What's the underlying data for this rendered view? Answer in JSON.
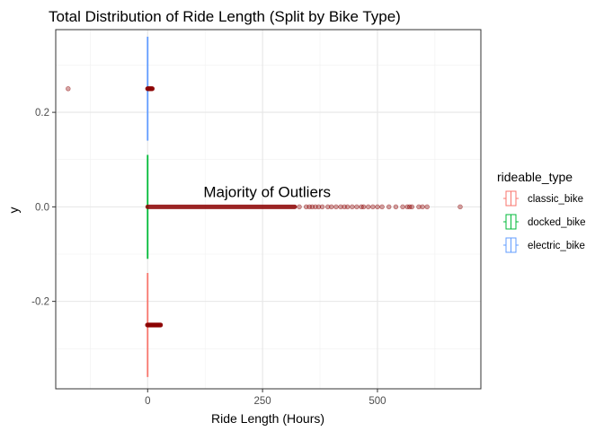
{
  "chart_data": {
    "type": "boxplot",
    "title": "Total Distribution of Ride Length (Split by Bike Type)",
    "xlabel": "Ride Length (Hours)",
    "ylabel": "y",
    "xlim": [
      -200,
      725
    ],
    "ylim": [
      -0.385,
      0.375
    ],
    "x_ticks": [
      0,
      250,
      500
    ],
    "y_ticks": [
      -0.2,
      0.0,
      0.2
    ],
    "x_tick_labels": [
      "0",
      "250",
      "500"
    ],
    "y_tick_labels": [
      "-0.2",
      "0.0",
      "0.2"
    ],
    "grid": true,
    "annotation": {
      "text": "Majority of Outliers",
      "x": 260,
      "y": 0.03
    },
    "legend": {
      "title": "rideable_type",
      "position": "right"
    },
    "series": [
      {
        "name": "classic_bike",
        "color": "#F8766D",
        "y_center": -0.25,
        "whisker_low": -0.36,
        "whisker_high": -0.14,
        "x": 0,
        "outlier_range": [
          0,
          28
        ],
        "outliers": [
          -0.5,
          2,
          4,
          6,
          8,
          10,
          12,
          14,
          16,
          18,
          20,
          22,
          24,
          26,
          28
        ]
      },
      {
        "name": "docked_bike",
        "color": "#00BA38",
        "y_center": 0.0,
        "whisker_low": -0.11,
        "whisker_high": 0.11,
        "x": 0,
        "outlier_range": [
          0,
          320
        ],
        "outliers": [
          330,
          345,
          352,
          358,
          365,
          372,
          380,
          392,
          400,
          410,
          420,
          428,
          435,
          445,
          455,
          465,
          470,
          480,
          490,
          500,
          510,
          525,
          540,
          555,
          565,
          570,
          575,
          590,
          598,
          608,
          680
        ]
      },
      {
        "name": "electric_bike",
        "color": "#619CFF",
        "y_center": 0.25,
        "whisker_low": 0.14,
        "whisker_high": 0.36,
        "x": 0,
        "outlier_range": [
          0,
          10
        ],
        "outliers": [
          -173,
          0,
          2,
          4,
          6,
          8,
          10
        ]
      }
    ]
  }
}
